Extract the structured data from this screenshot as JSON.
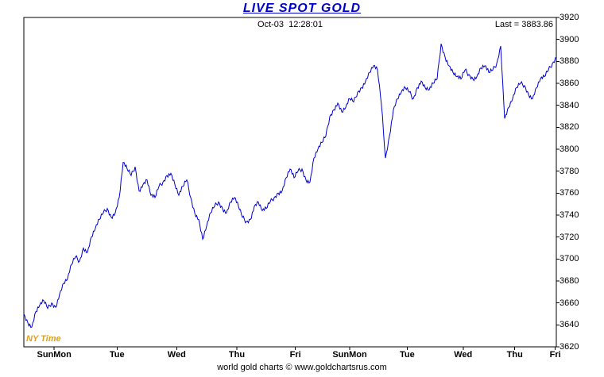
{
  "header": {
    "title": "LIVE SPOT GOLD",
    "timestamp": "Oct-03  12:28:01",
    "last_label": "Last = 3883.86"
  },
  "labels": {
    "ny_time": "NY Time",
    "footer": "world gold charts © www.goldchartsrus.com"
  },
  "colors": {
    "line": "#0000cc",
    "title": "#0000cc",
    "ny_time": "#e0a018",
    "frame": "#000000"
  },
  "chart_data": {
    "type": "line",
    "title": "LIVE SPOT GOLD",
    "subtitle": "Oct-03 12:28:01",
    "last_value": 3883.86,
    "ylim": [
      3620,
      3920
    ],
    "grid": false,
    "legend": "none",
    "y_ticks": [
      3620,
      3640,
      3660,
      3680,
      3700,
      3720,
      3740,
      3760,
      3780,
      3800,
      3820,
      3840,
      3860,
      3880,
      3900,
      3920
    ],
    "x_tick_labels": [
      "SunMon",
      "Tue",
      "Wed",
      "Thu",
      "Fri",
      "SunMon",
      "Tue",
      "Wed",
      "Thu",
      "Fri"
    ],
    "x_tick_pos": [
      0.057,
      0.175,
      0.287,
      0.4,
      0.51,
      0.612,
      0.72,
      0.825,
      0.922,
      0.998
    ],
    "xlabel": "",
    "ylabel": "",
    "values": [
      3650,
      3642,
      3638,
      3652,
      3658,
      3662,
      3655,
      3660,
      3656,
      3668,
      3678,
      3682,
      3695,
      3702,
      3698,
      3710,
      3706,
      3720,
      3728,
      3736,
      3742,
      3746,
      3738,
      3742,
      3756,
      3788,
      3782,
      3776,
      3784,
      3762,
      3768,
      3772,
      3758,
      3756,
      3766,
      3770,
      3776,
      3778,
      3768,
      3758,
      3766,
      3772,
      3756,
      3742,
      3736,
      3718,
      3730,
      3742,
      3748,
      3752,
      3746,
      3742,
      3752,
      3756,
      3748,
      3738,
      3734,
      3736,
      3748,
      3752,
      3744,
      3746,
      3752,
      3756,
      3760,
      3762,
      3774,
      3782,
      3774,
      3780,
      3782,
      3772,
      3770,
      3792,
      3800,
      3806,
      3812,
      3830,
      3836,
      3842,
      3834,
      3838,
      3846,
      3843,
      3852,
      3856,
      3862,
      3870,
      3876,
      3872,
      3840,
      3792,
      3812,
      3836,
      3846,
      3852,
      3856,
      3852,
      3846,
      3856,
      3862,
      3856,
      3854,
      3860,
      3864,
      3896,
      3884,
      3876,
      3870,
      3866,
      3864,
      3872,
      3868,
      3864,
      3866,
      3874,
      3876,
      3870,
      3872,
      3878,
      3894,
      3828,
      3838,
      3846,
      3856,
      3860,
      3858,
      3850,
      3846,
      3856,
      3864,
      3866,
      3872,
      3878,
      3884
    ]
  }
}
